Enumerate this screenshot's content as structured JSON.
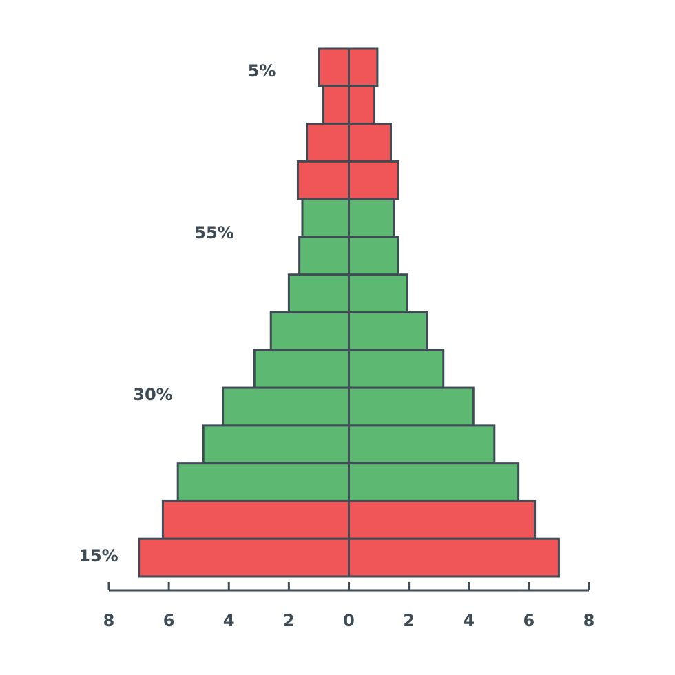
{
  "chart_data": {
    "type": "pyramid",
    "categories": [
      null,
      null,
      null,
      null,
      null,
      null,
      null,
      null,
      null,
      null,
      null,
      null,
      null,
      null
    ],
    "series": [
      {
        "values": [
          -1.0,
          -0.85,
          -1.4,
          -1.7,
          -1.55,
          -1.65,
          -2.0,
          -2.6,
          -3.15,
          -4.2,
          -4.85,
          -5.7,
          -6.2,
          -7.0
        ]
      },
      {
        "values": [
          0.95,
          0.85,
          1.4,
          1.65,
          1.5,
          1.65,
          1.95,
          2.6,
          3.15,
          4.15,
          4.85,
          5.65,
          6.2,
          7.0
        ]
      }
    ],
    "colors": [
      "#f05558",
      "#f05558",
      "#f05558",
      "#f05558",
      "#5db872",
      "#5db872",
      "#5db872",
      "#5db872",
      "#5db872",
      "#5db872",
      "#5db872",
      "#5db872",
      "#f05558",
      "#f05558"
    ],
    "outline_color": "#3f4c56",
    "annotations": [
      "5%",
      "55%",
      "30%",
      "15%"
    ],
    "xlim": [
      -8,
      8
    ],
    "xticks": [
      {
        "value": -8,
        "label": "8"
      },
      {
        "value": -6,
        "label": "6"
      },
      {
        "value": -4,
        "label": "4"
      },
      {
        "value": -2,
        "label": "2"
      },
      0,
      2,
      4,
      6,
      8
    ]
  }
}
